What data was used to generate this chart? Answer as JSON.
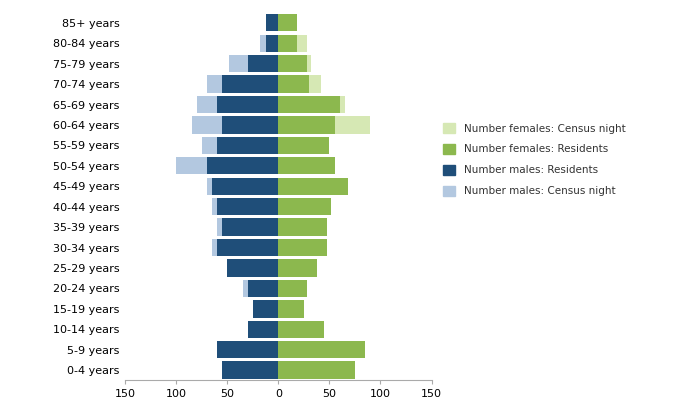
{
  "age_groups": [
    "0-4 years",
    "5-9 years",
    "10-14 years",
    "15-19 years",
    "20-24 years",
    "25-29 years",
    "30-34 years",
    "35-39 years",
    "40-44 years",
    "45-49 years",
    "50-54 years",
    "55-59 years",
    "60-64 years",
    "65-69 years",
    "70-74 years",
    "75-79 years",
    "80-84 years",
    "85+ years"
  ],
  "males_residents": [
    55,
    60,
    30,
    25,
    30,
    50,
    60,
    55,
    60,
    65,
    70,
    60,
    55,
    60,
    55,
    30,
    12,
    12
  ],
  "males_census_night": [
    55,
    60,
    30,
    25,
    35,
    50,
    65,
    60,
    65,
    70,
    100,
    75,
    85,
    80,
    70,
    48,
    18,
    12
  ],
  "females_residents": [
    75,
    85,
    45,
    25,
    28,
    38,
    48,
    48,
    52,
    68,
    55,
    50,
    55,
    60,
    30,
    28,
    18,
    18
  ],
  "females_census_night": [
    75,
    85,
    45,
    25,
    28,
    38,
    48,
    48,
    52,
    68,
    55,
    50,
    90,
    65,
    42,
    32,
    28,
    18
  ],
  "color_males_residents": "#1f4e79",
  "color_males_census_night": "#b3c8e0",
  "color_females_residents": "#8cb84e",
  "color_females_census_night": "#d6e8b4",
  "xlim": 150,
  "legend_labels": [
    "Number females: Census night",
    "Number females: Residents",
    "Number males: Residents",
    "Number males: Census night"
  ]
}
